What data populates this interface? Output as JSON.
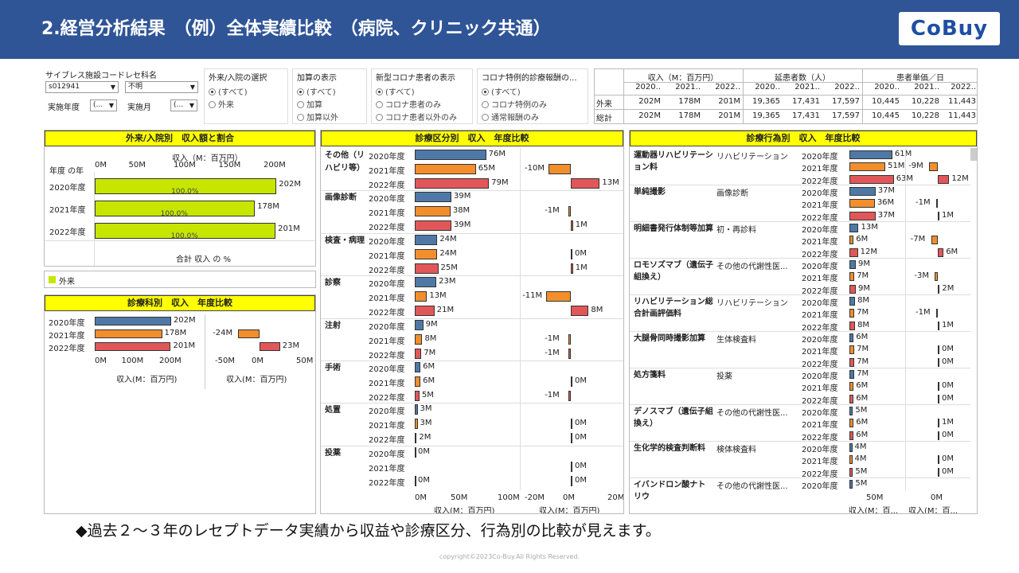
{
  "header": {
    "title": "2.経営分析結果　（例）全体実績比較　（病院、クリニック共通）",
    "logo": "CoBuy"
  },
  "filters": {
    "facility_code_label": "サイブレス施設コード",
    "facility_code_value": "s012941",
    "dept_label": "レセ科名",
    "dept_value": "不明",
    "year_label": "実施年度",
    "year_value": "(...",
    "month_label": "実施月",
    "month_value": "(...",
    "inout": {
      "title": "外来/入院の選択",
      "options": [
        "(すべて)",
        "外来"
      ]
    },
    "addition": {
      "title": "加算の表示",
      "options": [
        "(すべて)",
        "加算",
        "加算以外"
      ]
    },
    "covid": {
      "title": "新型コロナ患者の表示",
      "options": [
        "(すべて)",
        "コロナ患者のみ",
        "コロナ患者以外のみ"
      ]
    },
    "covid_special": {
      "title": "コロナ特例的診療報酬の...",
      "options": [
        "(すべて)",
        "コロナ特例のみ",
        "通常報酬のみ"
      ]
    }
  },
  "kpi": {
    "groups": [
      "収入（M：百万円）",
      "延患者数（人）",
      "患者単価／日"
    ],
    "years": [
      "2020..",
      "2021..",
      "2022..",
      "2020..",
      "2021..",
      "2022..",
      "2020..",
      "2021..",
      "2022.."
    ],
    "rows": [
      {
        "label": "外来",
        "values": [
          "202M",
          "178M",
          "201M",
          "19,365",
          "17,431",
          "17,597",
          "10,445",
          "10,228",
          "11,443"
        ]
      },
      {
        "label": "総計",
        "values": [
          "202M",
          "178M",
          "201M",
          "19,365",
          "17,431",
          "17,597",
          "10,445",
          "10,228",
          "11,443"
        ]
      }
    ]
  },
  "panel_inout": {
    "title": "外来/入院別　収入額と割合",
    "axis_title": "収入（M：百万円）",
    "row_header": "年度 の年",
    "ticks": [
      "0M",
      "50M",
      "100M",
      "150M",
      "200M"
    ],
    "rows": [
      {
        "year": "2020年度",
        "value": "202M",
        "pct": "100.0%"
      },
      {
        "year": "2021年度",
        "value": "178M",
        "pct": "100.0%"
      },
      {
        "year": "2022年度",
        "value": "201M",
        "pct": "100.0%"
      }
    ],
    "footer": "合計 収入 の %",
    "legend": "外来"
  },
  "panel_dept": {
    "title": "診療科別　収入　年度比較",
    "rows": [
      {
        "year": "2020年度",
        "value": "202M",
        "diff": ""
      },
      {
        "year": "2021年度",
        "value": "178M",
        "diff": "-24M"
      },
      {
        "year": "2022年度",
        "value": "201M",
        "diff": "23M"
      }
    ],
    "ticks_left": [
      "0M",
      "100M",
      "200M"
    ],
    "ticks_right": [
      "-50M",
      "0M",
      "50M"
    ],
    "axis_left": "収入(M：百万円)",
    "axis_right": "収入(M：百万円)"
  },
  "panel_category": {
    "title": "診療区分別　収入　年度比較",
    "groups": [
      {
        "name": "その他（リハビリ等）",
        "rows": [
          {
            "year": "2020年度",
            "value": "76M",
            "diff": ""
          },
          {
            "year": "2021年度",
            "value": "65M",
            "diff": "-10M"
          },
          {
            "year": "2022年度",
            "value": "79M",
            "diff": "13M"
          }
        ]
      },
      {
        "name": "画像診断",
        "rows": [
          {
            "year": "2020年度",
            "value": "39M",
            "diff": ""
          },
          {
            "year": "2021年度",
            "value": "38M",
            "diff": "-1M"
          },
          {
            "year": "2022年度",
            "value": "39M",
            "diff": "1M"
          }
        ]
      },
      {
        "name": "検査・病理",
        "rows": [
          {
            "year": "2020年度",
            "value": "24M",
            "diff": ""
          },
          {
            "year": "2021年度",
            "value": "24M",
            "diff": "0M"
          },
          {
            "year": "2022年度",
            "value": "25M",
            "diff": "1M"
          }
        ]
      },
      {
        "name": "診察",
        "rows": [
          {
            "year": "2020年度",
            "value": "23M",
            "diff": ""
          },
          {
            "year": "2021年度",
            "value": "13M",
            "diff": "-11M"
          },
          {
            "year": "2022年度",
            "value": "21M",
            "diff": "8M"
          }
        ]
      },
      {
        "name": "注射",
        "rows": [
          {
            "year": "2020年度",
            "value": "9M",
            "diff": ""
          },
          {
            "year": "2021年度",
            "value": "8M",
            "diff": "-1M"
          },
          {
            "year": "2022年度",
            "value": "7M",
            "diff": "-1M"
          }
        ]
      },
      {
        "name": "手術",
        "rows": [
          {
            "year": "2020年度",
            "value": "6M",
            "diff": ""
          },
          {
            "year": "2021年度",
            "value": "6M",
            "diff": "0M"
          },
          {
            "year": "2022年度",
            "value": "5M",
            "diff": "-1M"
          }
        ]
      },
      {
        "name": "処置",
        "rows": [
          {
            "year": "2020年度",
            "value": "3M",
            "diff": ""
          },
          {
            "year": "2021年度",
            "value": "3M",
            "diff": "0M"
          },
          {
            "year": "2022年度",
            "value": "2M",
            "diff": "0M"
          }
        ]
      },
      {
        "name": "投薬",
        "rows": [
          {
            "year": "2020年度",
            "value": "0M",
            "diff": ""
          },
          {
            "year": "2021年度",
            "value": "",
            "diff": "0M"
          },
          {
            "year": "2022年度",
            "value": "0M",
            "diff": "0M"
          }
        ]
      }
    ],
    "ticks_left": [
      "0M",
      "50M",
      "100M"
    ],
    "ticks_right": [
      "-20M",
      "0M",
      "20M"
    ],
    "axis_left": "収入(M：百万円)",
    "axis_right": "収入(M：百万円)"
  },
  "panel_action": {
    "title": "診療行為別　収入　年度比較",
    "groups": [
      {
        "name": "運動器リハビリテーション料",
        "sub": "リハビリテーション",
        "rows": [
          {
            "year": "2020年度",
            "value": "61M",
            "diff": ""
          },
          {
            "year": "2021年度",
            "value": "51M",
            "diff": "-9M"
          },
          {
            "year": "2022年度",
            "value": "63M",
            "diff": "12M"
          }
        ]
      },
      {
        "name": "単純撮影",
        "sub": "画像診断",
        "rows": [
          {
            "year": "2020年度",
            "value": "37M",
            "diff": ""
          },
          {
            "year": "2021年度",
            "value": "36M",
            "diff": "-1M"
          },
          {
            "year": "2022年度",
            "value": "37M",
            "diff": "1M"
          }
        ]
      },
      {
        "name": "明細書発行体制等加算",
        "sub": "初・再診料",
        "rows": [
          {
            "year": "2020年度",
            "value": "13M",
            "diff": ""
          },
          {
            "year": "2021年度",
            "value": "6M",
            "diff": "-7M"
          },
          {
            "year": "2022年度",
            "value": "12M",
            "diff": "6M"
          }
        ]
      },
      {
        "name": "ロモソズマブ（遺伝子組換え）",
        "sub": "その他の代謝性医...",
        "rows": [
          {
            "year": "2020年度",
            "value": "9M",
            "diff": ""
          },
          {
            "year": "2021年度",
            "value": "7M",
            "diff": "-3M"
          },
          {
            "year": "2022年度",
            "value": "9M",
            "diff": "2M"
          }
        ]
      },
      {
        "name": "リハビリテーション総合計画評価料",
        "sub": "リハビリテーション",
        "rows": [
          {
            "year": "2020年度",
            "value": "8M",
            "diff": ""
          },
          {
            "year": "2021年度",
            "value": "7M",
            "diff": "-1M"
          },
          {
            "year": "2022年度",
            "value": "8M",
            "diff": "1M"
          }
        ]
      },
      {
        "name": "大腿骨同時撮影加算",
        "sub": "生体検査料",
        "rows": [
          {
            "year": "2020年度",
            "value": "6M",
            "diff": ""
          },
          {
            "year": "2021年度",
            "value": "7M",
            "diff": "0M"
          },
          {
            "year": "2022年度",
            "value": "7M",
            "diff": "0M"
          }
        ]
      },
      {
        "name": "処方箋料",
        "sub": "投薬",
        "rows": [
          {
            "year": "2020年度",
            "value": "7M",
            "diff": ""
          },
          {
            "year": "2021年度",
            "value": "6M",
            "diff": "0M"
          },
          {
            "year": "2022年度",
            "value": "6M",
            "diff": "0M"
          }
        ]
      },
      {
        "name": "デノスマブ（遺伝子組換え）",
        "sub": "その他の代謝性医...",
        "rows": [
          {
            "year": "2020年度",
            "value": "5M",
            "diff": ""
          },
          {
            "year": "2021年度",
            "value": "6M",
            "diff": "1M"
          },
          {
            "year": "2022年度",
            "value": "6M",
            "diff": "0M"
          }
        ]
      },
      {
        "name": "生化学的検査判断料",
        "sub": "検体検査料",
        "rows": [
          {
            "year": "2020年度",
            "value": "4M",
            "diff": ""
          },
          {
            "year": "2021年度",
            "value": "4M",
            "diff": "0M"
          },
          {
            "year": "2022年度",
            "value": "5M",
            "diff": "0M"
          }
        ]
      },
      {
        "name": "イバンドロン酸ナトリウ",
        "sub": "その他の代謝性医...",
        "rows": [
          {
            "year": "2020年度",
            "value": "5M",
            "diff": ""
          }
        ]
      }
    ],
    "ticks_left": [
      "50M"
    ],
    "ticks_right": [
      "0M"
    ],
    "axis_left": "収入(M：百...",
    "axis_right": "収入(M：百..."
  },
  "footer": {
    "text": "◆過去２～３年のレセプトデータ実績から収益や診療区分、行為別の比較が見えます。",
    "copyright": "copyright©2023Co-Buy.All Rights Reserved."
  },
  "colors": {
    "y2020": "#4e79a7",
    "y2021": "#f28e2b",
    "y2022": "#e15759",
    "share": "#c6e600",
    "header": "#2f5597",
    "title_bar": "#ffff00"
  }
}
